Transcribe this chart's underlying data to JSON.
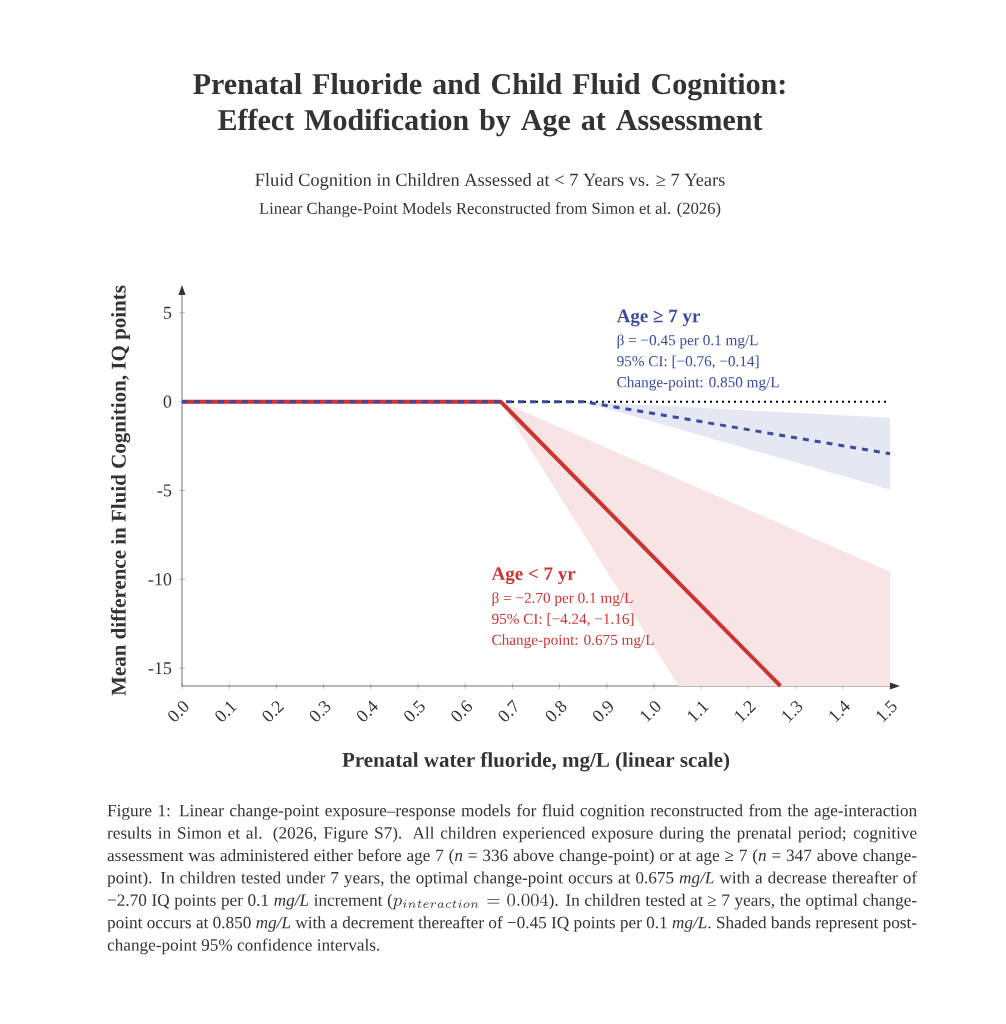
{
  "chart_data": {
    "type": "line",
    "title": "Prenatal Fluoride and Child Fluid Cognition: Effect Modification by Age at Assessment",
    "subtitle": "Fluid Cognition in Children Assessed at < 7 Years vs. ≥ 7 Years",
    "xlabel": "Prenatal water fluoride, mg/L (linear scale)",
    "ylabel": "Mean difference in Fluid Cognition, IQ points",
    "series": [
      {
        "name": "Age < 7 yr",
        "color": "#cc3333",
        "line_style": "solid",
        "x": [
          0,
          0.675,
          1.052,
          1.268,
          1.5
        ],
        "values": [
          0,
          0,
          -10.18,
          -16,
          null
        ],
        "lower": [
          null,
          0,
          -16,
          -16,
          -16
        ],
        "upper": [
          null,
          0,
          -4.37,
          -6.87,
          -9.57
        ]
      },
      {
        "name": "Age ≥ 7 yr",
        "color": "#3a4a9e",
        "line_style": "dashed",
        "x": [
          0,
          0.85,
          1.5
        ],
        "values": [
          0,
          0,
          -2.93
        ],
        "lower": [
          null,
          0,
          -4.94
        ],
        "upper": [
          null,
          0,
          -0.91
        ]
      }
    ],
    "xlim": [
      0,
      1.5
    ],
    "ylim": [
      -16,
      6
    ],
    "xticks": [
      {
        "value": 0,
        "label": "0.0"
      },
      0.1,
      0.2,
      0.3,
      0.4,
      0.5,
      0.6,
      0.7,
      0.8,
      0.9,
      {
        "value": 1,
        "label": "1.0"
      },
      1.1,
      1.2,
      1.3,
      1.4,
      1.5
    ],
    "yticks": [
      -15,
      -10,
      -5,
      0,
      5
    ],
    "ref_lines": [
      {
        "axis": "y",
        "value": 0,
        "color": "#000000",
        "line_style": "dotted"
      }
    ],
    "grid": false,
    "annotations": [
      "Linear Change-Point Models Reconstructed from Simon et al. (2026)",
      "β = −2.70 per 0.1 mg/L",
      "95% CI: [−4.24, −1.16]",
      "Change-point: 0.675 mg/L",
      "β = −0.45 per 0.1 mg/L",
      "95% CI: [−0.76, −0.14]",
      "Change-point: 0.850 mg/L",
      "Figure 1: Linear change-point exposure–response models for fluid cognition reconstructed from the age-interaction results in Simon et al. (2026, Figure S7). All children experienced exposure during the prenatal period; cognitive assessment was administered either before age 7 (*n* = 336 above change-point) or at age ≥ 7 (*n* = 347 above change-point). In children tested under 7 years, the optimal change-point occurs at 0.675 *mg/L* with a decrease thereafter of −2.70 IQ points per 0.1 *mg/L* increment (",
      "p_{interaction} = 0.004",
      "). In children tested at ≥ 7 years, the optimal change-point occurs at 0.850 *mg/L* with a decrement thereafter of −0.45 IQ points per 0.1 *mg/L*. Shaded bands represent post-change-point 95% confidence intervals."
    ]
  }
}
